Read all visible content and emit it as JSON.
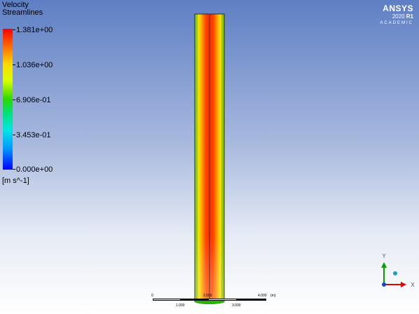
{
  "legend": {
    "title_line1": "Velocity",
    "title_line2": "Streamlines",
    "labels": [
      "1.381e+00",
      "1.036e+00",
      "6.906e-01",
      "3.453e-01",
      "0.000e+00"
    ],
    "units": "[m s^-1]",
    "colors": [
      "#ff0000",
      "#ffd800",
      "#2dd800",
      "#00e6e6",
      "#0000ff"
    ]
  },
  "logo": {
    "name": "ANSYS",
    "version": "2020",
    "release": "R1",
    "edition": "ACADEMIC"
  },
  "scale_bar": {
    "top_labels": [
      "0",
      "2.000",
      "4.000",
      "(m)"
    ],
    "bottom_labels": [
      "1.000",
      "3.000"
    ]
  },
  "axes": {
    "y_label": "Y",
    "x_label": "X",
    "y_color": "#00a000",
    "x_color": "#e00000"
  },
  "streamlines": {
    "colors": {
      "core": "#ff2a00",
      "mid": "#ff9900",
      "edge": "#e6f000",
      "wall": "#40c800"
    }
  }
}
